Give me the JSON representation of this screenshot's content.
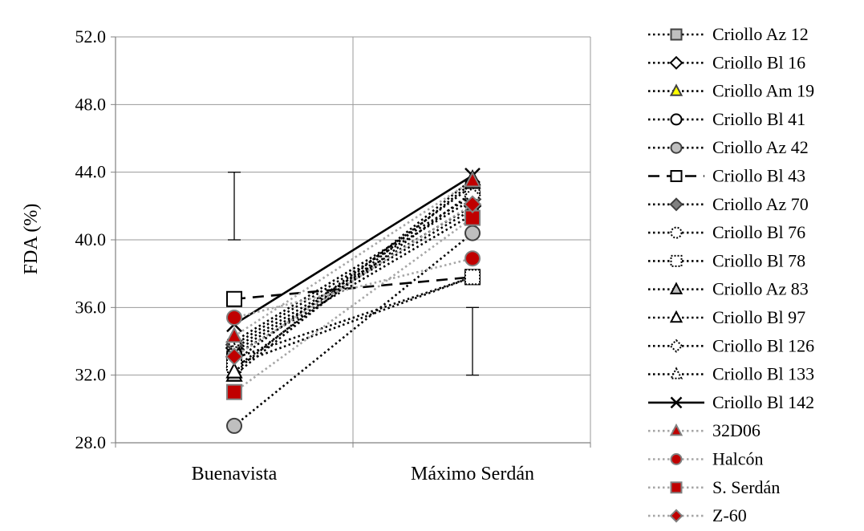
{
  "chart_data": {
    "type": "line",
    "categories": [
      "Buenavista",
      "Máximo Serdán"
    ],
    "ylabel": "FDA (%)",
    "ylim": [
      28,
      52
    ],
    "yticks": [
      "28.0",
      "32.0",
      "36.0",
      "40.0",
      "44.0",
      "48.0",
      "52.0"
    ],
    "grid": true,
    "legend_position": "right",
    "error_bars": [
      {
        "category": "Buenavista",
        "low": 40.0,
        "high": 44.0
      },
      {
        "category": "Máximo Serdán",
        "low": 32.0,
        "high": 36.0
      }
    ],
    "series": [
      {
        "name": "Criollo Az 12",
        "values": [
          33.0,
          37.8
        ],
        "marker": "square",
        "fill": "#bfbfbf",
        "stroke": "#404040",
        "line": "dotted",
        "line_color": "#000000"
      },
      {
        "name": "Criollo Bl 16",
        "values": [
          33.6,
          42.0
        ],
        "marker": "diamond",
        "fill": "#ffffff",
        "stroke": "#000000",
        "line": "dotted",
        "line_color": "#000000"
      },
      {
        "name": "Criollo Am 19",
        "values": [
          32.8,
          43.2
        ],
        "marker": "triangle",
        "fill": "#ffff00",
        "stroke": "#404040",
        "line": "dotted",
        "line_color": "#000000"
      },
      {
        "name": "Criollo Bl 41",
        "values": [
          33.2,
          41.5
        ],
        "marker": "circle",
        "fill": "#ffffff",
        "stroke": "#000000",
        "line": "dotted",
        "line_color": "#000000"
      },
      {
        "name": "Criollo Az 42",
        "values": [
          29.0,
          40.4
        ],
        "marker": "circle",
        "fill": "#bfbfbf",
        "stroke": "#404040",
        "line": "dotted",
        "line_color": "#000000"
      },
      {
        "name": "Criollo Bl 43",
        "values": [
          36.5,
          37.8
        ],
        "marker": "square",
        "fill": "#ffffff",
        "stroke": "#000000",
        "line": "dashed",
        "line_color": "#000000"
      },
      {
        "name": "Criollo Az 70",
        "values": [
          33.8,
          42.4
        ],
        "marker": "diamond",
        "fill": "#808080",
        "stroke": "#404040",
        "line": "dotted",
        "line_color": "#000000"
      },
      {
        "name": "Criollo Bl 76",
        "values": [
          32.4,
          42.8
        ],
        "marker": "circle",
        "fill": "#ffffff",
        "stroke": "#000000",
        "line": "dotted",
        "line_color": "#000000",
        "marker_dotted": true
      },
      {
        "name": "Criollo Bl 78",
        "values": [
          32.6,
          37.8
        ],
        "marker": "square",
        "fill": "#ffffff",
        "stroke": "#000000",
        "line": "dotted",
        "line_color": "#000000",
        "marker_dotted": true
      },
      {
        "name": "Criollo Az 83",
        "values": [
          32.0,
          43.4
        ],
        "marker": "triangle",
        "fill": "#bfbfbf",
        "stroke": "#000000",
        "line": "dotted",
        "line_color": "#000000"
      },
      {
        "name": "Criollo Bl 97",
        "values": [
          32.2,
          43.6
        ],
        "marker": "triangle",
        "fill": "#ffffff",
        "stroke": "#000000",
        "line": "dotted",
        "line_color": "#000000"
      },
      {
        "name": "Criollo Bl 126",
        "values": [
          34.0,
          42.6
        ],
        "marker": "diamond",
        "fill": "#ffffff",
        "stroke": "#000000",
        "line": "dotted",
        "line_color": "#000000",
        "marker_dotted": true
      },
      {
        "name": "Criollo Bl 133",
        "values": [
          33.4,
          41.8
        ],
        "marker": "triangle",
        "fill": "#ffffff",
        "stroke": "#000000",
        "line": "dotted",
        "line_color": "#000000",
        "marker_dotted": true
      },
      {
        "name": "Criollo Bl 142",
        "values": [
          35.0,
          43.8
        ],
        "marker": "x",
        "fill": "none",
        "stroke": "#000000",
        "line": "solid",
        "line_color": "#000000"
      },
      {
        "name": "32D06",
        "values": [
          34.3,
          43.5
        ],
        "marker": "triangle",
        "fill": "#c00000",
        "stroke": "#808080",
        "line": "dotted",
        "line_color": "#a6a6a6"
      },
      {
        "name": "Halcón",
        "values": [
          35.4,
          38.9
        ],
        "marker": "circle",
        "fill": "#c00000",
        "stroke": "#808080",
        "line": "dotted",
        "line_color": "#a6a6a6"
      },
      {
        "name": "S. Serdán",
        "values": [
          31.0,
          41.3
        ],
        "marker": "square",
        "fill": "#c00000",
        "stroke": "#808080",
        "line": "dotted",
        "line_color": "#a6a6a6"
      },
      {
        "name": "Z-60",
        "values": [
          33.1,
          42.1
        ],
        "marker": "diamond",
        "fill": "#c00000",
        "stroke": "#808080",
        "line": "dotted",
        "line_color": "#a6a6a6"
      }
    ]
  }
}
